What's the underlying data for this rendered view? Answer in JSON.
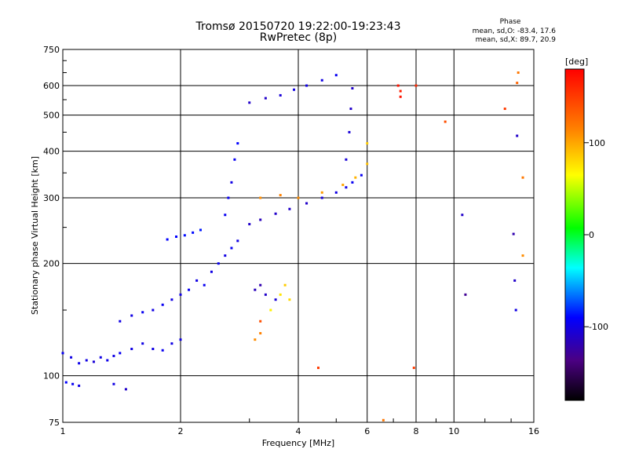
{
  "chart_data": {
    "type": "scatter",
    "title": "Tromsø 20150720 19:22:00-19:23:43",
    "subtitle": "RwPretec (8p)",
    "xlabel": "Frequency [MHz]",
    "ylabel": "Stationary phase Virtual Height [km]",
    "x_scale": "log",
    "y_scale": "log",
    "xlim": [
      1,
      16
    ],
    "ylim": [
      75,
      750
    ],
    "x_ticks": [
      1,
      2,
      4,
      6,
      8,
      10,
      16
    ],
    "x_ticklabels": [
      "1",
      "2",
      "4",
      "6",
      "8",
      "10",
      "16"
    ],
    "x_gridlines": [
      2,
      4,
      6,
      8,
      10
    ],
    "y_ticks": [
      75,
      100,
      200,
      300,
      400,
      500,
      600,
      750
    ],
    "y_ticklabels": [
      "75",
      "100",
      "200",
      "300",
      "400",
      "500",
      "600",
      "750"
    ],
    "y_gridlines": [
      100,
      200,
      300,
      400,
      500,
      600
    ],
    "grid": true,
    "stats": {
      "heading": "Phase",
      "line_o": "mean, sd,O: -83.4, 17.6",
      "line_x": "mean, sd,X:  89.7, 20.9"
    },
    "colorbar": {
      "label": "[deg]",
      "range": [
        -180,
        180
      ],
      "ticks": [
        100,
        0,
        -100
      ],
      "ticklabels": [
        "100",
        "0",
        "-100"
      ],
      "colormap": "rainbow (black-purple-blue-cyan-green-yellow-orange-red)"
    },
    "series": [
      {
        "description": "dense scatter traces (phase color-coded)",
        "points": [
          [
            1.0,
            115,
            -95
          ],
          [
            1.05,
            112,
            -100
          ],
          [
            1.1,
            108,
            -98
          ],
          [
            1.15,
            110,
            -100
          ],
          [
            1.2,
            109,
            -105
          ],
          [
            1.25,
            112,
            -100
          ],
          [
            1.3,
            110,
            -98
          ],
          [
            1.35,
            113,
            -100
          ],
          [
            1.4,
            115,
            -95
          ],
          [
            1.5,
            118,
            -100
          ],
          [
            1.6,
            122,
            -100
          ],
          [
            1.7,
            118,
            -100
          ],
          [
            1.8,
            117,
            -95
          ],
          [
            1.9,
            122,
            -100
          ],
          [
            2.0,
            125,
            -100
          ],
          [
            1.02,
            96,
            -90
          ],
          [
            1.06,
            95,
            -95
          ],
          [
            1.1,
            94,
            -100
          ],
          [
            1.35,
            95,
            -100
          ],
          [
            1.45,
            92,
            -110
          ],
          [
            1.4,
            140,
            -100
          ],
          [
            1.5,
            145,
            -100
          ],
          [
            1.6,
            148,
            -95
          ],
          [
            1.7,
            150,
            -100
          ],
          [
            1.8,
            155,
            -95
          ],
          [
            1.9,
            160,
            -100
          ],
          [
            2.0,
            165,
            -100
          ],
          [
            2.1,
            170,
            -95
          ],
          [
            2.2,
            180,
            -100
          ],
          [
            2.3,
            175,
            -95
          ],
          [
            2.4,
            190,
            -100
          ],
          [
            2.5,
            200,
            -95
          ],
          [
            2.6,
            210,
            -100
          ],
          [
            2.7,
            220,
            -95
          ],
          [
            2.8,
            230,
            -100
          ],
          [
            2.6,
            270,
            -95
          ],
          [
            2.65,
            300,
            -95
          ],
          [
            2.7,
            330,
            -100
          ],
          [
            2.75,
            380,
            -95
          ],
          [
            2.8,
            420,
            -90
          ],
          [
            1.85,
            232,
            -90
          ],
          [
            1.95,
            236,
            -90
          ],
          [
            2.05,
            238,
            -88
          ],
          [
            2.15,
            242,
            -88
          ],
          [
            2.25,
            246,
            -85
          ],
          [
            3.0,
            255,
            -110
          ],
          [
            3.2,
            262,
            -115
          ],
          [
            3.5,
            272,
            -110
          ],
          [
            3.8,
            280,
            -110
          ],
          [
            4.2,
            290,
            -110
          ],
          [
            4.6,
            300,
            -105
          ],
          [
            5.0,
            310,
            -100
          ],
          [
            5.3,
            320,
            -100
          ],
          [
            5.5,
            330,
            -95
          ],
          [
            5.8,
            345,
            -95
          ],
          [
            5.3,
            380,
            -105
          ],
          [
            5.4,
            450,
            -105
          ],
          [
            5.45,
            520,
            -110
          ],
          [
            5.5,
            590,
            -110
          ],
          [
            3.0,
            540,
            -110
          ],
          [
            3.3,
            555,
            -110
          ],
          [
            3.6,
            565,
            -105
          ],
          [
            3.9,
            585,
            -100
          ],
          [
            4.2,
            600,
            -100
          ],
          [
            4.6,
            620,
            -100
          ],
          [
            5.0,
            640,
            -95
          ],
          [
            3.2,
            300,
            110
          ],
          [
            3.6,
            305,
            115
          ],
          [
            4.0,
            300,
            110
          ],
          [
            4.6,
            310,
            105
          ],
          [
            5.2,
            325,
            100
          ],
          [
            5.6,
            340,
            95
          ],
          [
            6.0,
            370,
            90
          ],
          [
            6.0,
            420,
            85
          ],
          [
            3.1,
            170,
            -115
          ],
          [
            3.3,
            165,
            -110
          ],
          [
            3.5,
            160,
            -105
          ],
          [
            3.2,
            175,
            -120
          ],
          [
            3.4,
            150,
            70
          ],
          [
            3.6,
            165,
            75
          ],
          [
            3.7,
            175,
            85
          ],
          [
            3.8,
            160,
            80
          ],
          [
            3.2,
            140,
            140
          ],
          [
            3.1,
            125,
            110
          ],
          [
            3.2,
            130,
            115
          ],
          [
            7.2,
            600,
            170
          ],
          [
            7.3,
            580,
            165
          ],
          [
            7.3,
            560,
            170
          ],
          [
            8.0,
            600,
            160
          ],
          [
            9.5,
            480,
            140
          ],
          [
            10.5,
            270,
            -110
          ],
          [
            10.7,
            165,
            -130
          ],
          [
            13.5,
            520,
            150
          ],
          [
            14.5,
            610,
            130
          ],
          [
            14.5,
            440,
            -110
          ],
          [
            15,
            340,
            120
          ],
          [
            15,
            210,
            110
          ],
          [
            14.2,
            240,
            -120
          ],
          [
            14.3,
            180,
            -110
          ],
          [
            14.4,
            150,
            -100
          ],
          [
            14.6,
            650,
            120
          ],
          [
            7.9,
            105,
            150
          ],
          [
            4.5,
            105,
            150
          ],
          [
            6.6,
            76,
            120
          ]
        ]
      }
    ]
  }
}
